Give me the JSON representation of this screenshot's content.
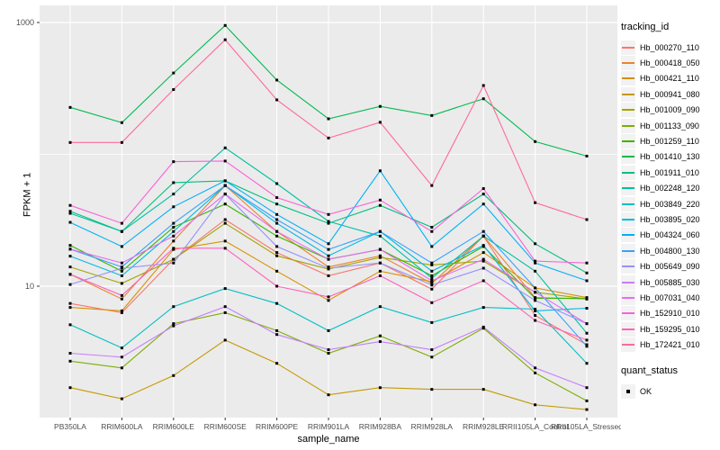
{
  "figure": {
    "background": "#FFFFFF",
    "panel_background": "#EBEBEB",
    "grid_color": "#FFFFFF",
    "tick_text_color": "#4D4D4D",
    "axis_tick_color": "#333333",
    "point_color": "#000000"
  },
  "chart_data": {
    "type": "line",
    "title": "",
    "xlabel": "sample_name",
    "ylabel": "FPKM + 1",
    "y_scale": "log10",
    "ylim": [
      1.0,
      1500
    ],
    "grid": "on",
    "legend_position": "right",
    "y_ticks": [
      {
        "value": 10,
        "label": "10"
      },
      {
        "value": 1000,
        "label": "1000"
      }
    ],
    "y_minor_breaks": [
      1,
      100
    ],
    "categories": [
      "PB350LA",
      "RRIM600LA",
      "RRIM600LE",
      "RRIM600SE",
      "RRIM600PE",
      "RRIM901LA",
      "RRIM928BA",
      "RRIM928LA",
      "RRIM928LE",
      "RRII105LA_Control",
      "RRII105LA_Stressed"
    ],
    "series": [
      {
        "name": "Hb_000270_110",
        "color": "#F8766D",
        "values": [
          7.4,
          6.3,
          16,
          32,
          18,
          12,
          15,
          9.5,
          24,
          6.0,
          3.6
        ]
      },
      {
        "name": "Hb_000418_050",
        "color": "#EA8331",
        "values": [
          12.3,
          8.0,
          22,
          58,
          26,
          14,
          17,
          10.5,
          24,
          8.2,
          8.0
        ]
      },
      {
        "name": "Hb_000421_110",
        "color": "#D89000",
        "values": [
          6.9,
          6.5,
          19,
          22,
          13,
          7.8,
          13,
          10.8,
          18,
          9.7,
          8.2
        ]
      },
      {
        "name": "Hb_000941_080",
        "color": "#C49A00",
        "values": [
          1.7,
          1.4,
          2.1,
          3.9,
          2.6,
          1.5,
          1.7,
          1.65,
          1.65,
          1.26,
          1.16
        ]
      },
      {
        "name": "Hb_001009_090",
        "color": "#A3A500",
        "values": [
          14,
          10.5,
          16,
          30,
          17,
          13.5,
          16.5,
          14.5,
          15.5,
          9.0,
          8.0
        ]
      },
      {
        "name": "Hb_001133_090",
        "color": "#7CAE00",
        "values": [
          2.7,
          2.4,
          5.2,
          6.3,
          4.6,
          3.1,
          4.2,
          2.9,
          4.8,
          2.2,
          1.35
        ]
      },
      {
        "name": "Hb_001259_110",
        "color": "#39B600",
        "values": [
          20.4,
          13,
          28,
          42,
          24,
          16,
          19,
          12,
          20,
          8.1,
          8.1
        ]
      },
      {
        "name": "Hb_001410_130",
        "color": "#00BB4E",
        "values": [
          227,
          174,
          414,
          950,
          366,
          186,
          231,
          197,
          264,
          125,
          97
        ]
      },
      {
        "name": "Hb_001911_010",
        "color": "#00BF7D",
        "values": [
          37,
          26,
          61,
          63,
          42,
          30,
          41,
          28,
          50,
          21,
          12.6
        ]
      },
      {
        "name": "Hb_002248_120",
        "color": "#00C1A3",
        "values": [
          35.7,
          26,
          50,
          112,
          60,
          31,
          24,
          11.5,
          24,
          13,
          4.4
        ]
      },
      {
        "name": "Hb_003849_220",
        "color": "#00BFC4",
        "values": [
          5.1,
          3.4,
          7.0,
          9.6,
          7.4,
          4.6,
          7.0,
          5.3,
          6.9,
          6.7,
          2.6
        ]
      },
      {
        "name": "Hb_003895_020",
        "color": "#00BAE0",
        "values": [
          16.9,
          12,
          26,
          58,
          30,
          17,
          26,
          13,
          20.4,
          6.5,
          6.8
        ]
      },
      {
        "name": "Hb_004324_060",
        "color": "#00B0F6",
        "values": [
          30.5,
          20,
          40,
          63,
          35,
          21,
          75,
          20,
          42,
          15,
          11.0
        ]
      },
      {
        "name": "Hb_004800_130",
        "color": "#35A2FF",
        "values": [
          19.1,
          14,
          30,
          58,
          32,
          19,
          26,
          15,
          26,
          9.7,
          3.5
        ]
      },
      {
        "name": "Hb_005649_090",
        "color": "#9590FF",
        "values": [
          10.3,
          13.7,
          15,
          50,
          20,
          13.7,
          15,
          10.2,
          13.7,
          7.8,
          5.2
        ]
      },
      {
        "name": "Hb_005885_030",
        "color": "#C77CFF",
        "values": [
          3.1,
          2.9,
          5.0,
          7.0,
          4.3,
          3.3,
          3.8,
          3.3,
          4.9,
          2.4,
          1.7
        ]
      },
      {
        "name": "Hb_007031_040",
        "color": "#E76BF3",
        "values": [
          19.1,
          15,
          24,
          50,
          26,
          16,
          19,
          11,
          16,
          9.0,
          5.2
        ]
      },
      {
        "name": "Hb_152910_010",
        "color": "#FA62DB",
        "values": [
          41,
          30,
          88,
          89,
          47,
          35,
          45,
          26,
          55,
          15.5,
          15.0
        ]
      },
      {
        "name": "Hb_159295_010",
        "color": "#FF62BC",
        "values": [
          12.3,
          8.5,
          19.4,
          19.4,
          10,
          8.3,
          12,
          7.5,
          11,
          5.5,
          3.9
        ]
      },
      {
        "name": "Hb_172421_010",
        "color": "#FF6A98",
        "values": [
          123,
          123,
          310,
          740,
          259,
          133,
          175,
          58,
          333,
          43,
          32
        ]
      }
    ]
  },
  "legend": {
    "color_title": "tracking_id",
    "shape_title": "quant_status",
    "shape_items": [
      {
        "label": "OK"
      }
    ]
  }
}
